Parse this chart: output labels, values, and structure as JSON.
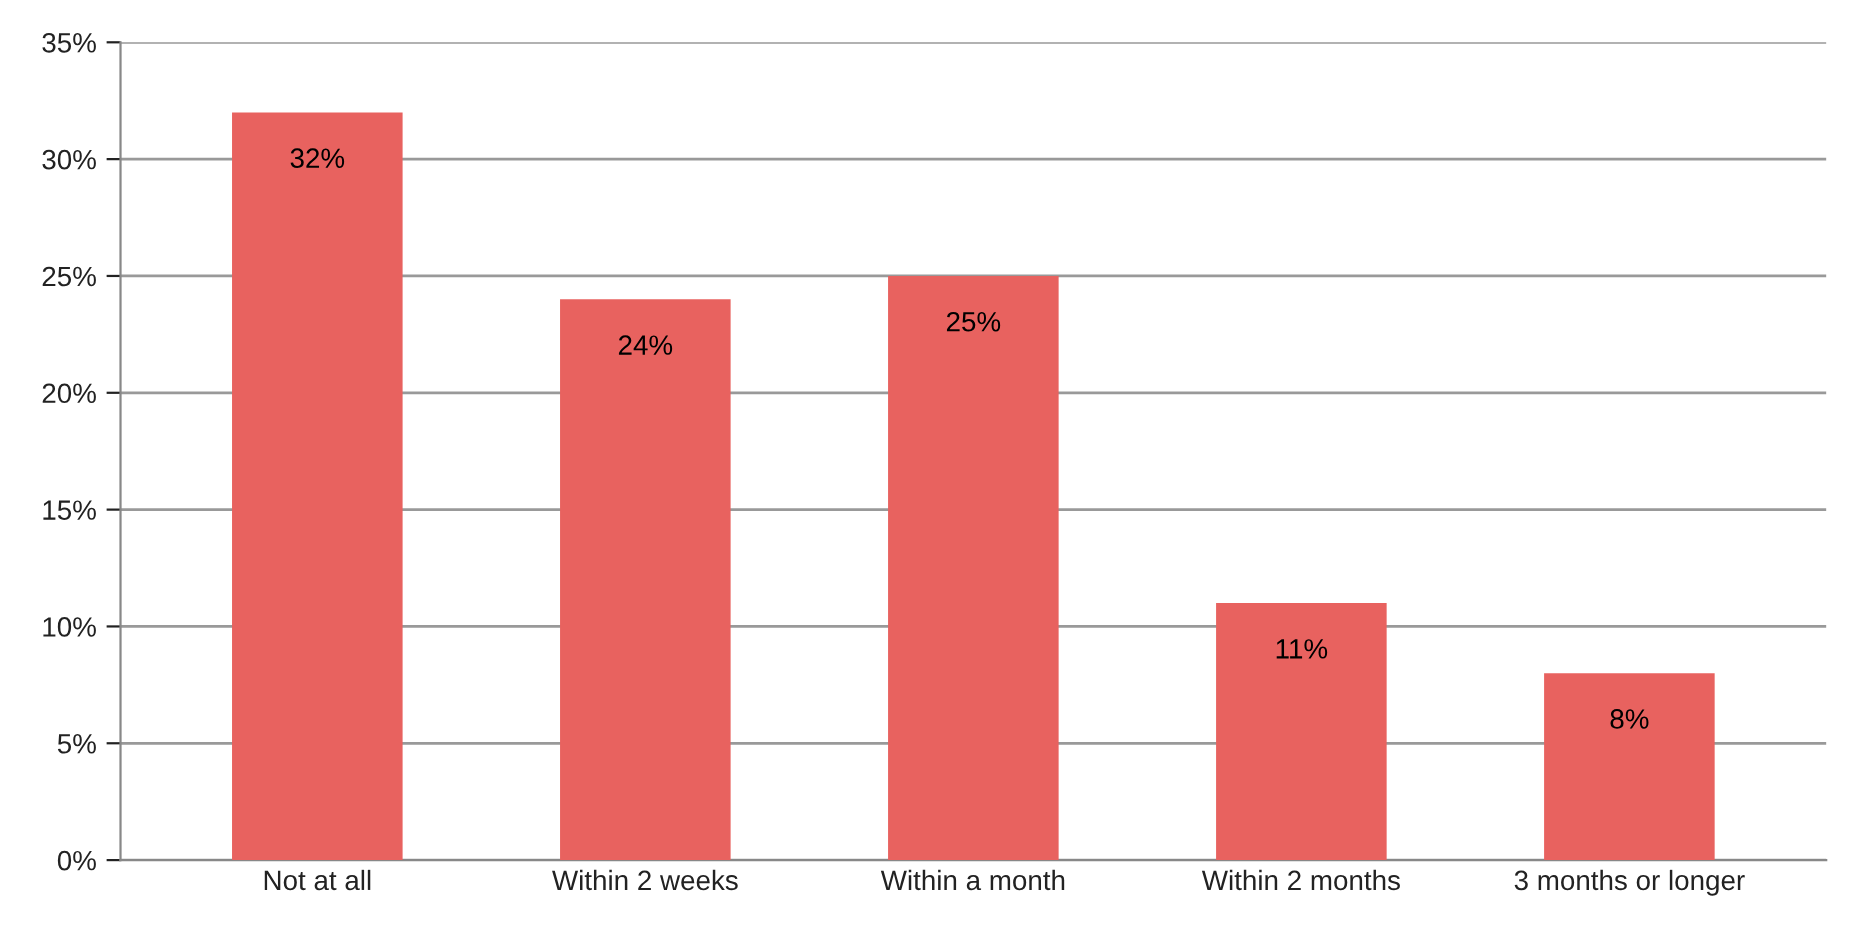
{
  "chart_data": {
    "type": "bar",
    "categories": [
      "Not at all",
      "Within 2 weeks",
      "Within a month",
      "Within 2 months",
      "3 months or longer"
    ],
    "values": [
      32,
      24,
      25,
      11,
      8
    ],
    "value_labels": [
      "32%",
      "24%",
      "25%",
      "11%",
      "8%"
    ],
    "color": "#e8625f",
    "ylim": [
      0,
      35
    ],
    "yticks": [
      {
        "value": 0,
        "label": "0%"
      },
      {
        "value": 5,
        "label": "5%"
      },
      {
        "value": 10,
        "label": "10%"
      },
      {
        "value": 15,
        "label": "15%"
      },
      {
        "value": 20,
        "label": "20%"
      },
      {
        "value": 25,
        "label": "25%"
      },
      {
        "value": 30,
        "label": "30%"
      },
      {
        "value": 35,
        "label": "35%"
      }
    ],
    "grid": "y",
    "legend": false
  }
}
